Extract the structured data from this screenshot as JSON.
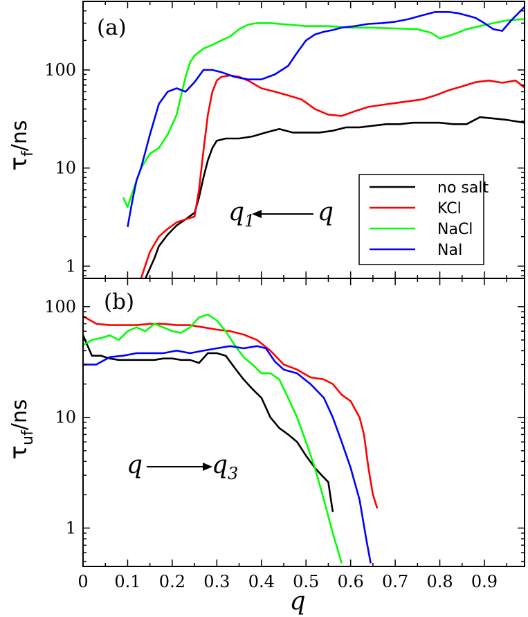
{
  "chart_data": [
    {
      "panel": "(a)",
      "type": "line",
      "yscale": "log",
      "ylabel": {
        "main": "τ",
        "sub": "f",
        "unit": "/ns"
      },
      "xlim": [
        0,
        0.99
      ],
      "ylim": [
        0.75,
        500
      ],
      "yticks": [
        {
          "value": 1,
          "label": "1"
        },
        {
          "value": 10,
          "label": "10"
        },
        {
          "value": 100,
          "label": "100"
        }
      ],
      "annotation": {
        "from": "q",
        "to": "q",
        "to_sub": "1",
        "direction": "left"
      },
      "legend": {
        "position": "center-right",
        "entries": [
          "no salt",
          "KCl",
          "NaCl",
          "NaI"
        ]
      },
      "series": [
        {
          "name": "no salt",
          "color": "#000000",
          "x": [
            0.14,
            0.16,
            0.17,
            0.19,
            0.21,
            0.23,
            0.25,
            0.26,
            0.27,
            0.28,
            0.29,
            0.3,
            0.32,
            0.35,
            0.38,
            0.41,
            0.44,
            0.47,
            0.5,
            0.53,
            0.56,
            0.59,
            0.62,
            0.65,
            0.68,
            0.71,
            0.74,
            0.77,
            0.8,
            0.83,
            0.86,
            0.89,
            0.92,
            0.95,
            0.99
          ],
          "y": [
            0.75,
            1.2,
            1.6,
            2.1,
            2.6,
            3.0,
            3.5,
            5.0,
            8.0,
            12,
            16,
            19,
            20,
            20,
            21,
            23,
            25,
            23,
            23,
            23,
            24,
            26,
            26,
            27,
            28,
            28,
            29,
            29,
            29,
            28,
            28,
            33,
            32,
            31,
            29
          ]
        },
        {
          "name": "KCl",
          "color": "#ff0000",
          "x": [
            0.13,
            0.15,
            0.17,
            0.19,
            0.21,
            0.23,
            0.25,
            0.26,
            0.27,
            0.28,
            0.29,
            0.3,
            0.31,
            0.33,
            0.35,
            0.37,
            0.4,
            0.43,
            0.46,
            0.49,
            0.52,
            0.55,
            0.58,
            0.61,
            0.64,
            0.67,
            0.7,
            0.73,
            0.76,
            0.79,
            0.82,
            0.85,
            0.88,
            0.91,
            0.94,
            0.97,
            0.99
          ],
          "y": [
            0.75,
            1.4,
            2.0,
            2.4,
            2.8,
            3.0,
            3.2,
            6.0,
            15,
            35,
            60,
            78,
            85,
            88,
            85,
            78,
            65,
            60,
            55,
            50,
            40,
            35,
            34,
            38,
            42,
            44,
            46,
            48,
            50,
            55,
            62,
            68,
            75,
            78,
            74,
            78,
            66
          ]
        },
        {
          "name": "NaCl",
          "color": "#00ff00",
          "x": [
            0.09,
            0.1,
            0.11,
            0.13,
            0.15,
            0.17,
            0.19,
            0.21,
            0.22,
            0.23,
            0.24,
            0.25,
            0.27,
            0.29,
            0.31,
            0.33,
            0.35,
            0.37,
            0.39,
            0.42,
            0.46,
            0.5,
            0.55,
            0.6,
            0.65,
            0.7,
            0.75,
            0.78,
            0.8,
            0.83,
            0.86,
            0.89,
            0.92,
            0.95,
            0.99
          ],
          "y": [
            5.0,
            4.0,
            5.5,
            10,
            14,
            16,
            22,
            35,
            55,
            85,
            120,
            140,
            165,
            180,
            200,
            220,
            260,
            290,
            300,
            300,
            290,
            280,
            280,
            270,
            270,
            265,
            260,
            240,
            210,
            230,
            260,
            280,
            300,
            320,
            330
          ]
        },
        {
          "name": "NaI",
          "color": "#0000ff",
          "x": [
            0.1,
            0.11,
            0.12,
            0.13,
            0.15,
            0.17,
            0.19,
            0.21,
            0.23,
            0.25,
            0.27,
            0.29,
            0.31,
            0.34,
            0.37,
            0.4,
            0.43,
            0.46,
            0.48,
            0.5,
            0.52,
            0.54,
            0.56,
            0.58,
            0.61,
            0.64,
            0.67,
            0.7,
            0.73,
            0.76,
            0.79,
            0.82,
            0.84,
            0.86,
            0.88,
            0.9,
            0.92,
            0.94,
            0.96,
            0.99
          ],
          "y": [
            2.5,
            4.5,
            7.5,
            10,
            22,
            45,
            60,
            65,
            60,
            75,
            100,
            100,
            95,
            85,
            80,
            80,
            90,
            110,
            150,
            200,
            230,
            245,
            255,
            270,
            280,
            295,
            300,
            310,
            330,
            360,
            390,
            390,
            380,
            360,
            340,
            300,
            260,
            250,
            320,
            440
          ]
        }
      ]
    },
    {
      "panel": "(b)",
      "type": "line",
      "yscale": "log",
      "ylabel": {
        "main": "τ",
        "sub": "uf",
        "unit": "/ns"
      },
      "xlabel": "q",
      "xlim": [
        0,
        0.99
      ],
      "ylim": [
        0.45,
        180
      ],
      "xticks": [
        {
          "value": 0,
          "label": "0"
        },
        {
          "value": 0.1,
          "label": "0.1"
        },
        {
          "value": 0.2,
          "label": "0.2"
        },
        {
          "value": 0.3,
          "label": "0.3"
        },
        {
          "value": 0.4,
          "label": "0.4"
        },
        {
          "value": 0.5,
          "label": "0.5"
        },
        {
          "value": 0.6,
          "label": "0.6"
        },
        {
          "value": 0.7,
          "label": "0.7"
        },
        {
          "value": 0.8,
          "label": "0.8"
        },
        {
          "value": 0.9,
          "label": "0.9"
        }
      ],
      "yticks": [
        {
          "value": 1,
          "label": "1"
        },
        {
          "value": 10,
          "label": "10"
        },
        {
          "value": 100,
          "label": "100"
        }
      ],
      "annotation": {
        "from": "q",
        "to": "q",
        "to_sub": "3",
        "direction": "right"
      },
      "series": [
        {
          "name": "no salt",
          "color": "#000000",
          "x": [
            0,
            0.02,
            0.04,
            0.06,
            0.08,
            0.1,
            0.12,
            0.14,
            0.16,
            0.18,
            0.2,
            0.22,
            0.24,
            0.26,
            0.28,
            0.3,
            0.32,
            0.34,
            0.36,
            0.38,
            0.4,
            0.42,
            0.44,
            0.46,
            0.48,
            0.5,
            0.52,
            0.535,
            0.55,
            0.56
          ],
          "y": [
            55,
            36,
            36,
            34,
            33,
            33,
            33,
            33,
            33,
            34,
            34,
            33,
            33,
            31,
            38,
            38,
            36,
            28,
            22,
            18,
            15,
            10,
            8,
            7,
            6,
            4.5,
            3.5,
            3.0,
            2.6,
            1.4
          ]
        },
        {
          "name": "KCl",
          "color": "#ff0000",
          "x": [
            0,
            0.03,
            0.06,
            0.09,
            0.12,
            0.15,
            0.18,
            0.21,
            0.24,
            0.27,
            0.3,
            0.33,
            0.36,
            0.39,
            0.42,
            0.45,
            0.48,
            0.51,
            0.54,
            0.56,
            0.58,
            0.6,
            0.62,
            0.63,
            0.64,
            0.65,
            0.66
          ],
          "y": [
            82,
            70,
            68,
            68,
            68,
            70,
            70,
            68,
            68,
            65,
            62,
            60,
            56,
            50,
            40,
            30,
            27,
            23,
            22,
            20,
            16,
            14,
            10,
            7,
            3.5,
            2.0,
            1.5
          ]
        },
        {
          "name": "NaCl",
          "color": "#00ff00",
          "x": [
            0,
            0.02,
            0.04,
            0.06,
            0.08,
            0.1,
            0.12,
            0.14,
            0.16,
            0.18,
            0.2,
            0.22,
            0.24,
            0.26,
            0.28,
            0.3,
            0.32,
            0.34,
            0.36,
            0.38,
            0.4,
            0.42,
            0.44,
            0.46,
            0.48,
            0.5,
            0.52,
            0.54,
            0.56,
            0.58
          ],
          "y": [
            45,
            50,
            52,
            55,
            50,
            60,
            65,
            60,
            70,
            65,
            60,
            58,
            65,
            80,
            85,
            75,
            60,
            45,
            35,
            30,
            25,
            25,
            22,
            15,
            10,
            6,
            3.5,
            1.8,
            0.9,
            0.48
          ]
        },
        {
          "name": "NaI",
          "color": "#0000ff",
          "x": [
            0,
            0.03,
            0.06,
            0.09,
            0.12,
            0.15,
            0.18,
            0.21,
            0.24,
            0.27,
            0.3,
            0.33,
            0.36,
            0.39,
            0.41,
            0.43,
            0.45,
            0.48,
            0.51,
            0.54,
            0.56,
            0.58,
            0.6,
            0.62,
            0.635,
            0.645
          ],
          "y": [
            30,
            30,
            35,
            36,
            38,
            38,
            38,
            40,
            38,
            40,
            42,
            44,
            42,
            44,
            42,
            32,
            27,
            25,
            20,
            15,
            10,
            6,
            3.5,
            1.8,
            0.8,
            0.48
          ]
        }
      ]
    }
  ]
}
